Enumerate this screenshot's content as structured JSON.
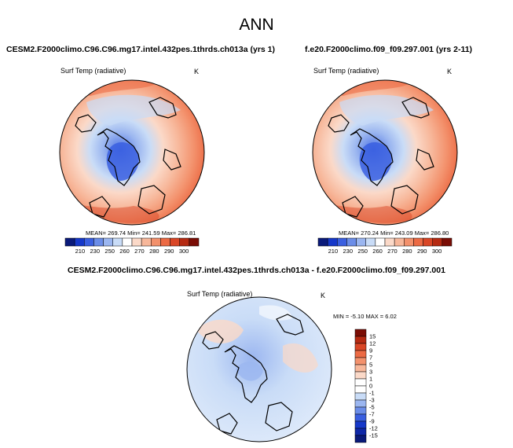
{
  "chart_data": {
    "type": "heatmap",
    "title": "ANN",
    "panels": [
      {
        "case": "CESM2.F2000climo.C96.C96.mg17.intel.432pes.1thrds.ch013a (yrs 1)",
        "variable": "Surf Temp (radiative)",
        "units": "K",
        "stats": "MEAN= 269.74   Min= 241.59   Max= 286.81",
        "mean": 269.74,
        "min": 241.59,
        "max": 286.81,
        "colorbar": {
          "orientation": "horizontal",
          "levels": [
            "210",
            "230",
            "250",
            "260",
            "270",
            "280",
            "290",
            "300"
          ],
          "colors": [
            "#0a1a7a",
            "#1638c9",
            "#3a5fe0",
            "#6b8de8",
            "#9bb6f0",
            "#c9dcf7",
            "#ffffff",
            "#fbd9c8",
            "#f7b79a",
            "#f3916c",
            "#ec6a44",
            "#d94626",
            "#b52a12",
            "#7a0d05"
          ]
        }
      },
      {
        "case": "f.e20.F2000climo.f09_f09.297.001 (yrs 2-11)",
        "variable": "Surf Temp (radiative)",
        "units": "K",
        "stats": "MEAN= 270.24   Min= 243.09   Max= 286.80",
        "mean": 270.24,
        "min": 243.09,
        "max": 286.8,
        "colorbar": {
          "orientation": "horizontal",
          "levels": [
            "210",
            "230",
            "250",
            "260",
            "270",
            "280",
            "290",
            "300"
          ],
          "colors": [
            "#0a1a7a",
            "#1638c9",
            "#3a5fe0",
            "#6b8de8",
            "#9bb6f0",
            "#c9dcf7",
            "#ffffff",
            "#fbd9c8",
            "#f7b79a",
            "#f3916c",
            "#ec6a44",
            "#d94626",
            "#b52a12",
            "#7a0d05"
          ]
        }
      },
      {
        "case": "CESM2.F2000climo.C96.C96.mg17.intel.432pes.1thrds.ch013a - f.e20.F2000climo.f09_f09.297.001",
        "variable": "Surf Temp (radiative)",
        "units": "K",
        "stats": "MIN =  -5.10  MAX =   6.02",
        "min": -5.1,
        "max": 6.02,
        "colorbar": {
          "orientation": "vertical",
          "levels": [
            "15",
            "12",
            "9",
            "7",
            "5",
            "3",
            "1",
            "0",
            "-1",
            "-3",
            "-5",
            "-7",
            "-9",
            "-12",
            "-15"
          ],
          "colors": [
            "#7a0d05",
            "#b52a12",
            "#d94626",
            "#ec6a44",
            "#f3916c",
            "#f7b79a",
            "#fbd9c8",
            "#ffffff",
            "#ffffff",
            "#c9dcf7",
            "#9bb6f0",
            "#6b8de8",
            "#3a5fe0",
            "#1638c9",
            "#0f28a8",
            "#0a1a7a"
          ]
        }
      }
    ]
  }
}
